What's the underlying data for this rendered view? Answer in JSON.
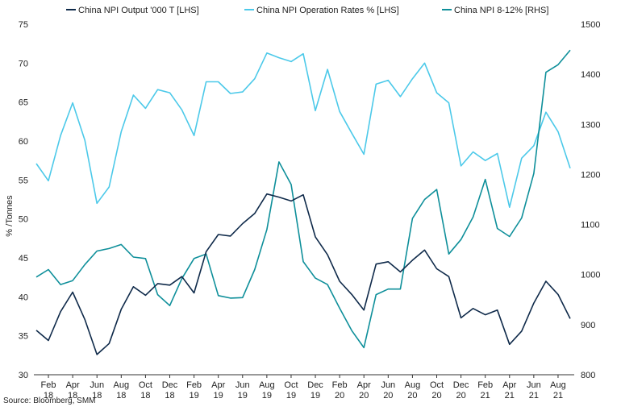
{
  "chart_data": {
    "type": "line",
    "x": [
      "Jan 18",
      "Feb 18",
      "Mar 18",
      "Apr 18",
      "May 18",
      "Jun 18",
      "Jul 18",
      "Aug 18",
      "Sep 18",
      "Oct 18",
      "Nov 18",
      "Dec 18",
      "Jan 19",
      "Feb 19",
      "Mar 19",
      "Apr 19",
      "May 19",
      "Jun 19",
      "Jul 19",
      "Aug 19",
      "Sep 19",
      "Oct 19",
      "Nov 19",
      "Dec 19",
      "Jan 20",
      "Feb 20",
      "Mar 20",
      "Apr 20",
      "May 20",
      "Jun 20",
      "Jul 20",
      "Aug 20",
      "Sep 20",
      "Oct 20",
      "Nov 20",
      "Dec 20",
      "Jan 21",
      "Feb 21",
      "Mar 21",
      "Apr 21",
      "May 21",
      "Jun 21",
      "Jul 21",
      "Aug 21",
      "Sep 21"
    ],
    "x_tick_labels": [
      {
        "month": "Feb",
        "year": "18"
      },
      {
        "month": "Apr",
        "year": "18"
      },
      {
        "month": "Jun",
        "year": "18"
      },
      {
        "month": "Aug",
        "year": "18"
      },
      {
        "month": "Oct",
        "year": "18"
      },
      {
        "month": "Dec",
        "year": "18"
      },
      {
        "month": "Feb",
        "year": "19"
      },
      {
        "month": "Apr",
        "year": "19"
      },
      {
        "month": "Jun",
        "year": "19"
      },
      {
        "month": "Aug",
        "year": "19"
      },
      {
        "month": "Oct",
        "year": "19"
      },
      {
        "month": "Dec",
        "year": "19"
      },
      {
        "month": "Feb",
        "year": "20"
      },
      {
        "month": "Apr",
        "year": "20"
      },
      {
        "month": "Jun",
        "year": "20"
      },
      {
        "month": "Aug",
        "year": "20"
      },
      {
        "month": "Oct",
        "year": "20"
      },
      {
        "month": "Dec",
        "year": "20"
      },
      {
        "month": "Feb",
        "year": "21"
      },
      {
        "month": "Apr",
        "year": "21"
      },
      {
        "month": "Jun",
        "year": "21"
      },
      {
        "month": "Aug",
        "year": "21"
      }
    ],
    "ylabel": "% /Tonnes",
    "ylim": [
      30,
      75
    ],
    "y_ticks": [
      "30",
      "35",
      "40",
      "45",
      "50",
      "55",
      "60",
      "65",
      "70",
      "75"
    ],
    "y2lim": [
      800,
      1500
    ],
    "y2_ticks": [
      "800",
      "900",
      "1000",
      "1100",
      "1200",
      "1300",
      "1400",
      "1500"
    ],
    "grid": false,
    "legend_position": "top",
    "series": [
      {
        "name": "China NPI Output '000 T [LHS]",
        "axis": "left",
        "color": "#0f2a4a",
        "values": [
          35.7,
          34.4,
          38.1,
          40.6,
          37.1,
          32.6,
          34.0,
          38.4,
          41.3,
          40.2,
          41.7,
          41.5,
          42.6,
          40.5,
          45.8,
          48.0,
          47.8,
          49.4,
          50.7,
          53.2,
          52.8,
          52.3,
          53.1,
          47.7,
          45.4,
          42.0,
          40.3,
          38.3,
          44.2,
          44.5,
          43.2,
          44.7,
          46.0,
          43.6,
          42.6,
          37.3,
          38.5,
          37.7,
          38.3,
          33.9,
          35.6,
          39.2,
          42.0,
          40.3,
          37.2
        ]
      },
      {
        "name": "China NPI Operation Rates % [LHS]",
        "axis": "left",
        "color": "#4cc9e9",
        "values": [
          57.1,
          54.9,
          60.7,
          64.9,
          60.1,
          52.0,
          54.1,
          61.2,
          65.9,
          64.2,
          66.6,
          66.2,
          64.0,
          60.7,
          67.6,
          67.6,
          66.1,
          66.3,
          68.0,
          71.3,
          70.7,
          70.2,
          71.2,
          63.9,
          69.2,
          63.8,
          61.0,
          58.3,
          67.3,
          67.8,
          65.7,
          68.0,
          70.0,
          66.2,
          64.9,
          56.8,
          58.6,
          57.5,
          58.4,
          51.5,
          57.8,
          59.4,
          63.7,
          61.2,
          56.5
        ]
      },
      {
        "name": "China NPI 8-12% [RHS]",
        "axis": "right",
        "color": "#0e8f9a",
        "values": [
          995,
          1010,
          980,
          988,
          1020,
          1047,
          1052,
          1060,
          1035,
          1032,
          960,
          938,
          992,
          1032,
          1041,
          958,
          953,
          954,
          1010,
          1090,
          1225,
          1180,
          1026,
          993,
          980,
          933,
          888,
          854,
          960,
          971,
          971,
          1112,
          1150,
          1170,
          1041,
          1070,
          1115,
          1190,
          1092,
          1076,
          1113,
          1202,
          1404,
          1419,
          1448
        ]
      }
    ]
  },
  "legend_items": [
    {
      "label": "China NPI Output '000 T [LHS]",
      "color": "#0f2a4a"
    },
    {
      "label": "China NPI Operation Rates % [LHS]",
      "color": "#4cc9e9"
    },
    {
      "label": "China NPI 8-12% [RHS]",
      "color": "#0e8f9a"
    }
  ],
  "source_text": "Source: Bloomberg, SMM"
}
